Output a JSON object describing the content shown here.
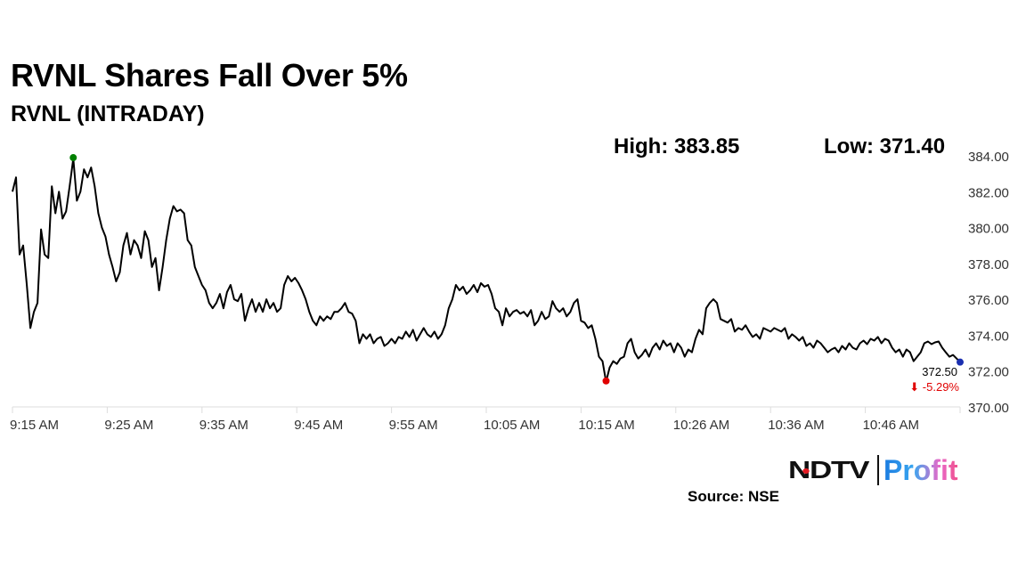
{
  "header": {
    "title": "RVNL Shares Fall Over 5%",
    "subtitle": "RVNL (INTRADAY)",
    "high_label": "High: 383.85",
    "low_label": "Low: 371.40"
  },
  "footer": {
    "brand_left": "NDTV",
    "brand_right": "Profit",
    "source": "Source: NSE"
  },
  "colors": {
    "line": "#000000",
    "high_marker": "#008000",
    "low_marker": "#e00000",
    "last_marker": "#1a2fb0",
    "change": "#e00000",
    "axis": "#dddddd"
  },
  "chart_data": {
    "type": "line",
    "title": "RVNL (INTRADAY)",
    "xlabel": "",
    "ylabel": "",
    "ylim": [
      370,
      384
    ],
    "y_ticks": [
      "384.00",
      "382.00",
      "380.00",
      "378.00",
      "376.00",
      "374.00",
      "372.00",
      "370.00"
    ],
    "y_tick_values": [
      384,
      382,
      380,
      378,
      376,
      374,
      372,
      370
    ],
    "x_tick_labels": [
      "9:15 AM",
      "9:25 AM",
      "9:35 AM",
      "9:45 AM",
      "9:55 AM",
      "10:05 AM",
      "10:15 AM",
      "10:26 AM",
      "10:36 AM",
      "10:46 AM"
    ],
    "x_minutes_span": 101,
    "grid": false,
    "high": 383.85,
    "low": 371.4,
    "last_value_label": "372.50",
    "change_label": "⬇ -5.29%",
    "values": [
      382.0,
      382.8,
      378.5,
      379.0,
      376.8,
      374.4,
      375.3,
      375.8,
      379.9,
      378.5,
      378.3,
      382.3,
      380.8,
      382.0,
      380.5,
      380.9,
      382.3,
      383.85,
      381.5,
      382.0,
      383.25,
      382.8,
      383.35,
      382.3,
      380.8,
      380.0,
      379.5,
      378.5,
      377.8,
      377.0,
      377.5,
      379.0,
      379.7,
      378.5,
      379.3,
      379.0,
      378.3,
      379.8,
      379.3,
      377.8,
      378.3,
      376.5,
      377.8,
      379.3,
      380.5,
      381.2,
      380.9,
      381.0,
      380.8,
      379.3,
      379.0,
      377.8,
      377.3,
      376.8,
      376.5,
      375.8,
      375.5,
      375.8,
      376.3,
      375.5,
      376.4,
      376.8,
      376.0,
      375.9,
      376.3,
      374.8,
      375.5,
      376.0,
      375.3,
      375.8,
      375.3,
      376.0,
      375.5,
      375.8,
      375.3,
      375.5,
      376.8,
      377.3,
      377.0,
      377.2,
      376.9,
      376.5,
      376.0,
      375.3,
      374.8,
      374.55,
      375.05,
      374.8,
      375.05,
      374.9,
      375.3,
      375.3,
      375.5,
      375.8,
      375.3,
      375.2,
      374.8,
      373.55,
      374.05,
      373.8,
      374.05,
      373.55,
      373.8,
      373.9,
      373.4,
      373.55,
      373.8,
      373.55,
      373.9,
      373.8,
      374.2,
      373.9,
      374.3,
      373.7,
      374.05,
      374.4,
      374.05,
      373.9,
      374.2,
      373.8,
      374.05,
      374.55,
      375.5,
      376.0,
      376.8,
      376.5,
      376.7,
      376.3,
      376.5,
      376.8,
      376.4,
      376.9,
      376.7,
      376.8,
      376.3,
      375.5,
      375.3,
      374.55,
      375.5,
      375.05,
      375.3,
      375.4,
      375.2,
      375.3,
      375.05,
      375.4,
      374.55,
      374.8,
      375.3,
      374.9,
      375.05,
      375.9,
      375.5,
      375.3,
      375.5,
      375.05,
      375.3,
      375.8,
      376.0,
      374.8,
      374.7,
      374.4,
      374.55,
      373.8,
      372.8,
      372.55,
      371.4,
      372.2,
      372.55,
      372.4,
      372.7,
      372.8,
      373.55,
      373.8,
      373.05,
      372.7,
      372.9,
      373.2,
      372.8,
      373.3,
      373.55,
      373.2,
      373.7,
      373.4,
      373.55,
      373.05,
      373.55,
      373.3,
      372.8,
      373.2,
      373.05,
      373.8,
      374.3,
      374.05,
      375.5,
      375.8,
      376.0,
      375.8,
      374.9,
      374.8,
      374.7,
      374.9,
      374.2,
      374.4,
      374.3,
      374.55,
      374.2,
      373.9,
      374.05,
      373.8,
      374.4,
      374.3,
      374.2,
      374.4,
      374.3,
      374.2,
      374.4,
      373.8,
      374.05,
      373.9,
      373.7,
      373.9,
      373.4,
      373.55,
      373.3,
      373.7,
      373.55,
      373.3,
      373.05,
      373.2,
      373.3,
      373.05,
      373.4,
      373.2,
      373.55,
      373.3,
      373.2,
      373.55,
      373.7,
      373.5,
      373.8,
      373.7,
      373.9,
      373.55,
      373.8,
      373.7,
      373.3,
      373.05,
      373.2,
      372.8,
      373.2,
      373.05,
      372.55,
      372.8,
      373.05,
      373.55,
      373.65,
      373.5,
      373.6,
      373.65,
      373.3,
      373.05,
      372.8,
      372.9,
      372.7,
      372.5
    ]
  }
}
